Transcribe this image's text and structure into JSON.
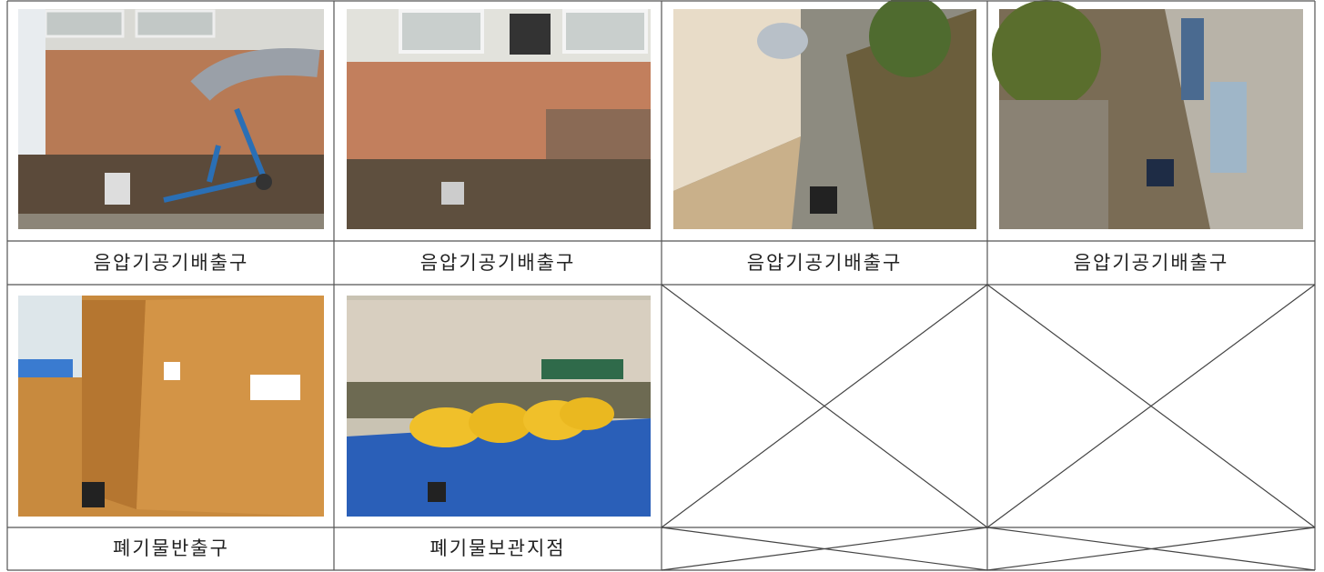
{
  "captions": [
    [
      "음압기공기배출구",
      "음압기공기배출구",
      "음압기공기배출구",
      "음압기공기배출구"
    ],
    [
      "폐기물반출구",
      "폐기물보관지점"
    ]
  ]
}
